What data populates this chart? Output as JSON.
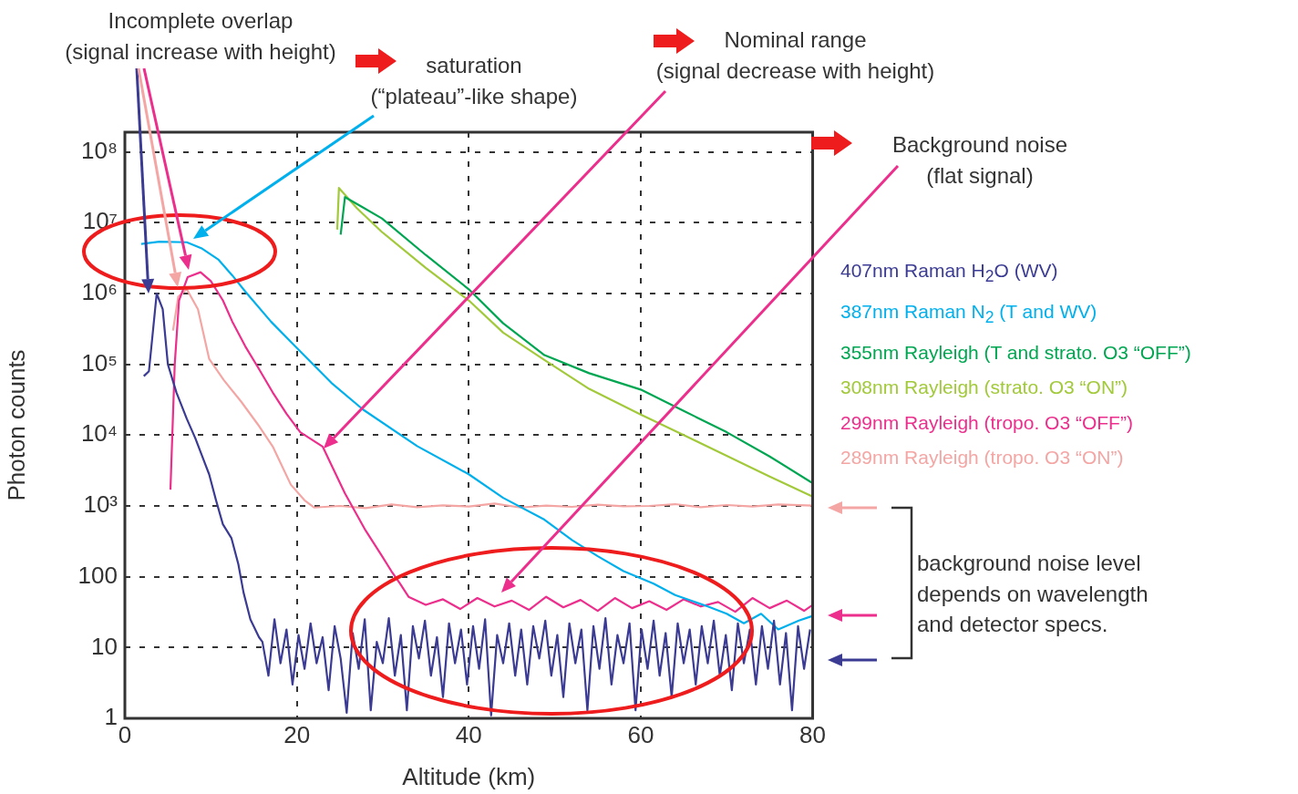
{
  "chart_data": {
    "type": "line",
    "xlabel": "Altitude (km)",
    "ylabel": "Photon counts",
    "log": "y",
    "grid": true,
    "legend": "right",
    "xlim": [
      0,
      80
    ],
    "xticks": [
      0,
      20,
      40,
      60,
      80
    ],
    "ylim": [
      1,
      190000000
    ],
    "yticks": [
      1,
      10,
      100,
      {
        "value": 1000,
        "label": "10³"
      },
      {
        "value": 10000,
        "label": "10⁴"
      },
      {
        "value": 100000,
        "label": "10⁵"
      },
      {
        "value": 1000000,
        "label": "10⁶"
      },
      {
        "value": 10000000,
        "label": "10⁷"
      },
      {
        "value": 100000000,
        "label": "10⁸"
      }
    ],
    "annotations": [
      "Incomplete overlap\n(signal increase with height)",
      "saturation\n(“plateau”-like shape)",
      "Nominal range\n(signal decrease with height)",
      "Background noise\n(flat signal)",
      "background noise level\ndepends on wavelength\nand detector specs."
    ],
    "series": [
      {
        "name": "407nm Raman H$_{2}$O (WV)",
        "color": "#3b3b94",
        "x": [
          2.2,
          2.8,
          3.7,
          4.4,
          5,
          6,
          7.2,
          8.2,
          9,
          9.8,
          10.6,
          11.4,
          12.4,
          13.2,
          13.8,
          14.6,
          15.6,
          16,
          16.7,
          17.4,
          18.1,
          18.8,
          19.5,
          20.2,
          20.9,
          21.6,
          22.3,
          23,
          23.7,
          24.4,
          25.1,
          25.8,
          26.5,
          27.2,
          27.9,
          28.6,
          29.3,
          30,
          30.7,
          31.4,
          32.1,
          32.8,
          33.5,
          34.2,
          34.9,
          35.6,
          36.3,
          37,
          37.7,
          38.4,
          39.1,
          39.8,
          40.5,
          41.2,
          41.9,
          42.6,
          43.3,
          44,
          44.7,
          45.4,
          46.1,
          46.8,
          47.5,
          48.2,
          48.9,
          49.6,
          50.3,
          51,
          51.7,
          52.4,
          53.1,
          53.8,
          54.5,
          55.2,
          55.9,
          56.6,
          57.3,
          58,
          58.7,
          59.4,
          60.1,
          60.8,
          61.5,
          62.2,
          62.9,
          63.6,
          64.3,
          65,
          65.7,
          66.4,
          67.1,
          67.8,
          68.5,
          69.2,
          69.9,
          70.6,
          71.3,
          72,
          72.7,
          73.4,
          74.1,
          74.8,
          75.5,
          76.2,
          76.9,
          77.6,
          78.3,
          79,
          79.7
        ],
        "values": [
          68000,
          80000,
          1000000,
          600000,
          100000,
          40000,
          17000,
          9000,
          5000,
          2800,
          1200,
          550,
          350,
          150,
          60,
          25,
          14,
          12,
          4,
          25,
          6,
          18,
          3,
          15,
          5,
          22,
          6,
          14,
          2.5,
          20,
          7,
          1.2,
          16,
          5,
          25,
          1.3,
          12,
          6,
          26,
          4,
          15,
          1.3,
          20,
          7,
          24,
          4,
          14,
          2,
          22,
          6,
          18,
          3,
          20,
          5,
          25,
          1.1,
          15,
          6,
          22,
          4,
          18,
          3,
          20,
          7,
          24,
          4,
          15,
          2,
          22,
          6,
          18,
          1.3,
          20,
          5,
          26,
          3,
          15,
          6,
          22,
          1.3,
          18,
          5,
          24,
          4,
          16,
          2,
          22,
          6,
          18,
          3,
          20,
          6,
          24,
          4,
          15,
          2.5,
          22,
          6,
          18,
          3,
          20,
          5,
          24,
          3,
          16,
          1.3,
          20,
          5,
          18
        ]
      },
      {
        "name": "387nm Raman N$_{2}$ (T and WV)",
        "color": "#00b0ec",
        "x": [
          1.9,
          4,
          7.2,
          9,
          10.9,
          12.5,
          14,
          17,
          19.8,
          24,
          27.7,
          34,
          40,
          44,
          48.8,
          52,
          55,
          58,
          61.5,
          64,
          67.8,
          70,
          72,
          74,
          76,
          78.4,
          80
        ],
        "values": [
          5000000,
          5400000,
          5300000,
          4300000,
          3000000,
          1800000,
          1070000,
          400000,
          180000,
          55000,
          23000,
          7000,
          2800,
          1300,
          640,
          330,
          195,
          120,
          80,
          55,
          38,
          30,
          22,
          30,
          18,
          24,
          28
        ]
      },
      {
        "name": "355nm Rayleigh (T and strato. O3 “OFF”)",
        "color": "#00a651",
        "x": [
          25.1,
          25.6,
          27.5,
          29.9,
          35,
          40,
          44,
          48.8,
          54,
          60,
          65,
          70,
          75,
          80
        ],
        "values": [
          6800000,
          23000000,
          17000000,
          11500000,
          3500000,
          1150000,
          380000,
          135000,
          75000,
          44000,
          22000,
          11000,
          5000,
          2100
        ]
      },
      {
        "name": "308nm Rayleigh (strato. O3 “ON”)",
        "color": "#a2c93a",
        "x": [
          24.7,
          24.9,
          27,
          29.9,
          35,
          40,
          44,
          48.8,
          54,
          60,
          65,
          70,
          75,
          80
        ],
        "values": [
          8000000,
          31000000,
          16000000,
          7400000,
          2300000,
          800000,
          280000,
          115000,
          45000,
          19500,
          10000,
          5100,
          2600,
          1350
        ]
      },
      {
        "name": "299nm Rayleigh (tropo. O3 “OFF”)",
        "color": "#ec2e8c",
        "x": [
          5.3,
          5.8,
          6.3,
          7.3,
          8.8,
          10,
          11.4,
          12.5,
          14,
          15.5,
          17.2,
          18.8,
          20.4,
          23,
          25.6,
          28,
          29.9,
          31,
          32,
          33,
          35,
          37,
          39,
          41,
          43,
          45,
          47,
          49,
          51,
          53,
          55,
          57,
          59,
          61,
          63,
          65,
          67,
          69,
          71,
          73,
          75,
          77,
          79,
          80
        ],
        "values": [
          1700,
          100000,
          800000,
          1700000,
          2000000,
          1500000,
          800000,
          400000,
          180000,
          90000,
          40000,
          20000,
          11000,
          6900,
          1500,
          450,
          196,
          120,
          80,
          52,
          40,
          48,
          35,
          50,
          38,
          46,
          34,
          52,
          37,
          47,
          33,
          50,
          36,
          45,
          34,
          48,
          38,
          44,
          32,
          50,
          36,
          46,
          33,
          40
        ]
      },
      {
        "name": "289nm Rayleigh (tropo. O3 “ON”)",
        "color": "#f4a6a4",
        "x": [
          5.6,
          6.2,
          7.2,
          8.5,
          9.8,
          11.5,
          13.5,
          15.5,
          17.2,
          19.3,
          20.9,
          22,
          25,
          28,
          31,
          34,
          37,
          40,
          43,
          46,
          49,
          52,
          55,
          58,
          61,
          64,
          67,
          70,
          73,
          76,
          80
        ],
        "values": [
          300000,
          900000,
          1150000,
          600000,
          120000,
          60000,
          30000,
          14000,
          6900,
          2000,
          1200,
          950,
          1000,
          930,
          1050,
          960,
          1020,
          980,
          1080,
          950,
          1010,
          970,
          1040,
          990,
          1000,
          1060,
          960,
          1030,
          980,
          1050,
          1010
        ]
      }
    ]
  }
}
